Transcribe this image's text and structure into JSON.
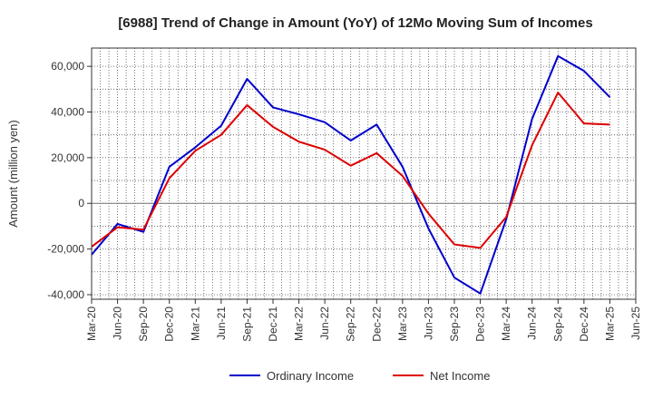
{
  "chart_data": {
    "type": "line",
    "title": "[6988]  Trend of Change in Amount (YoY) of 12Mo Moving Sum of Incomes",
    "xlabel": "",
    "ylabel": "Amount (million yen)",
    "ylim": [
      -42000,
      68000
    ],
    "yticks": [
      60000,
      40000,
      20000,
      0,
      -20000,
      -40000
    ],
    "ytick_labels": [
      "60,000",
      "40,000",
      "20,000",
      "0",
      "-20,000",
      "-40,000"
    ],
    "categories": [
      "Mar-20",
      "Jun-20",
      "Sep-20",
      "Dec-20",
      "Mar-21",
      "Jun-21",
      "Sep-21",
      "Dec-21",
      "Mar-22",
      "Jun-22",
      "Sep-22",
      "Dec-22",
      "Mar-23",
      "Jun-23",
      "Sep-23",
      "Dec-23",
      "Mar-24",
      "Jun-24",
      "Sep-24",
      "Dec-24",
      "Mar-25",
      "Jun-25"
    ],
    "grid": true,
    "legend_position": "bottom",
    "series": [
      {
        "name": "Ordinary Income",
        "color": "#0000cc",
        "values": [
          -22500,
          -9000,
          -12500,
          16000,
          24500,
          34000,
          54500,
          42000,
          39000,
          35500,
          27500,
          34500,
          16000,
          -11000,
          -32500,
          -39500,
          -7000,
          37000,
          64500,
          58000,
          46500,
          null
        ]
      },
      {
        "name": "Net Income",
        "color": "#dd0000",
        "values": [
          -19000,
          -10500,
          -11500,
          11000,
          23000,
          30000,
          43000,
          33500,
          27000,
          23500,
          16500,
          22000,
          12000,
          -4500,
          -18000,
          -19500,
          -6000,
          25500,
          48500,
          35000,
          34500,
          null
        ]
      }
    ]
  }
}
